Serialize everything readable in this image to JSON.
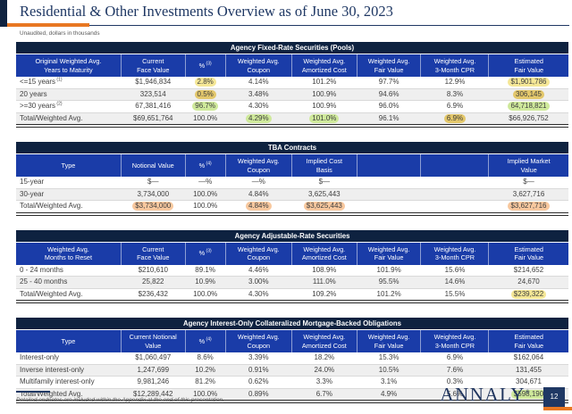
{
  "page": {
    "title": "Residential & Other Investments Overview as of June 30, 2023",
    "subtitle": "Unaudited, dollars in thousands",
    "footnote": "Detailed endnotes are included within the Appendix at the end of this presentation.",
    "logo": "ANNALY",
    "logo_mark": "®",
    "page_number": "12",
    "colors": {
      "navy_band": "#0E2240",
      "header_blue": "#1A3CA8",
      "title_navy": "#1F3864",
      "accent_orange": "#E87722",
      "hl_yellow": "#F5E796",
      "hl_gold": "#E3C76B",
      "hl_green": "#CFE99B",
      "hl_peach": "#F8C89E"
    }
  },
  "layout": {
    "col_widths": [
      "19%",
      "11.6%",
      "7.3%",
      "12%",
      "11.8%",
      "11.6%",
      "12.3%",
      "14.4%"
    ]
  },
  "tables": [
    {
      "title": "Agency Fixed-Rate Securities (Pools)",
      "headers": [
        {
          "lines": [
            "Original Weighted Avg.",
            "Years to Maturity"
          ]
        },
        {
          "lines": [
            "Current",
            "Face Value"
          ]
        },
        {
          "lines": [
            "%"
          ],
          "sup": "(3)"
        },
        {
          "lines": [
            "Weighted Avg.",
            "Coupon"
          ]
        },
        {
          "lines": [
            "Weighted Avg.",
            "Amortized Cost"
          ]
        },
        {
          "lines": [
            "Weighted Avg.",
            "Fair Value"
          ]
        },
        {
          "lines": [
            "Weighted Avg.",
            "3-Month CPR"
          ]
        },
        {
          "lines": [
            "Estimated",
            "Fair Value"
          ]
        }
      ],
      "rows": [
        {
          "label": "<=15 years",
          "label_sup": "(1)",
          "cells": [
            "$1,946,834",
            {
              "v": "2.8%",
              "hl": "yellow"
            },
            "4.14%",
            "101.2%",
            "97.7%",
            "12.9%",
            {
              "v": "$1,901,786",
              "hl": "yellow"
            }
          ]
        },
        {
          "label": "20 years",
          "cells": [
            "323,514",
            {
              "v": "0.5%",
              "hl": "gold"
            },
            "3.48%",
            "100.9%",
            "94.6%",
            "8.3%",
            {
              "v": "306,145",
              "hl": "gold"
            }
          ]
        },
        {
          "label": ">=30 years",
          "label_sup": "(2)",
          "cells": [
            "67,381,416",
            {
              "v": "96.7%",
              "hl": "green"
            },
            "4.30%",
            "100.9%",
            "96.0%",
            "6.9%",
            {
              "v": "64,718,821",
              "hl": "green"
            }
          ]
        },
        {
          "label": "Total/Weighted Avg.",
          "total": true,
          "cells": [
            "$69,651,764",
            "100.0%",
            {
              "v": "4.29%",
              "hl": "green"
            },
            {
              "v": "101.0%",
              "hl": "green"
            },
            "96.1%",
            {
              "v": "6.9%",
              "hl": "gold"
            },
            "$66,926,752"
          ]
        }
      ]
    },
    {
      "title": "TBA Contracts",
      "headers": [
        {
          "lines": [
            "Type"
          ]
        },
        {
          "lines": [
            "Notional Value"
          ]
        },
        {
          "lines": [
            "%"
          ],
          "sup": "(4)"
        },
        {
          "lines": [
            "Weighted Avg.",
            "Coupon"
          ]
        },
        {
          "lines": [
            "Implied Cost",
            "Basis"
          ]
        },
        {
          "lines": []
        },
        {
          "lines": []
        },
        {
          "lines": [
            "Implied Market",
            "Value"
          ]
        }
      ],
      "rows": [
        {
          "label": "15-year",
          "cells": [
            "$—",
            "—%",
            "—%",
            "$—",
            "",
            "",
            "$—"
          ]
        },
        {
          "label": "30-year",
          "cells": [
            "3,734,000",
            "100.0%",
            "4.84%",
            "3,625,443",
            "",
            "",
            "3,627,716"
          ]
        },
        {
          "label": "Total/Weighted Avg.",
          "total": true,
          "cells": [
            {
              "v": "$3,734,000",
              "hl": "peach"
            },
            "100.0%",
            {
              "v": "4.84%",
              "hl": "peach"
            },
            {
              "v": "$3,625,443",
              "hl": "peach"
            },
            "",
            "",
            {
              "v": "$3,627,716",
              "hl": "peach"
            }
          ]
        }
      ]
    },
    {
      "title": "Agency Adjustable-Rate Securities",
      "headers": [
        {
          "lines": [
            "Weighted Avg.",
            "Months to Reset"
          ]
        },
        {
          "lines": [
            "Current",
            "Face Value"
          ]
        },
        {
          "lines": [
            "%"
          ],
          "sup": "(3)"
        },
        {
          "lines": [
            "Weighted Avg.",
            "Coupon"
          ]
        },
        {
          "lines": [
            "Weighted Avg.",
            "Amortized Cost"
          ]
        },
        {
          "lines": [
            "Weighted Avg.",
            "Fair Value"
          ]
        },
        {
          "lines": [
            "Weighted Avg.",
            "3-Month CPR"
          ]
        },
        {
          "lines": [
            "Estimated",
            "Fair Value"
          ]
        }
      ],
      "rows": [
        {
          "label": "0 - 24 months",
          "cells": [
            "$210,610",
            "89.1%",
            "4.46%",
            "108.9%",
            "101.9%",
            "15.6%",
            "$214,652"
          ]
        },
        {
          "label": "25 - 40 months",
          "cells": [
            "25,822",
            "10.9%",
            "3.00%",
            "111.0%",
            "95.5%",
            "14.6%",
            "24,670"
          ]
        },
        {
          "label": "Total/Weighted Avg.",
          "total": true,
          "cells": [
            "$236,432",
            "100.0%",
            "4.30%",
            "109.2%",
            "101.2%",
            "15.5%",
            {
              "v": "$239,322",
              "hl": "yellow"
            }
          ]
        }
      ]
    },
    {
      "title": "Agency Interest-Only Collateralized Mortgage-Backed Obligations",
      "headers": [
        {
          "lines": [
            "Type"
          ]
        },
        {
          "lines": [
            "Current Notional",
            "Value"
          ]
        },
        {
          "lines": [
            "%"
          ],
          "sup": "(4)"
        },
        {
          "lines": [
            "Weighted Avg.",
            "Coupon"
          ]
        },
        {
          "lines": [
            "Weighted Avg.",
            "Amortized Cost"
          ]
        },
        {
          "lines": [
            "Weighted Avg.",
            "Fair Value"
          ]
        },
        {
          "lines": [
            "Weighted Avg.",
            "3-Month CPR"
          ]
        },
        {
          "lines": [
            "Estimated",
            "Fair Value"
          ]
        }
      ],
      "rows": [
        {
          "label": "Interest-only",
          "cells": [
            "$1,060,497",
            "8.6%",
            "3.39%",
            "18.2%",
            "15.3%",
            "6.9%",
            "$162,064"
          ]
        },
        {
          "label": "Inverse interest-only",
          "cells": [
            "1,247,699",
            "10.2%",
            "0.91%",
            "24.0%",
            "10.5%",
            "7.6%",
            "131,455"
          ]
        },
        {
          "label": "Multifamily interest-only",
          "cells": [
            "9,981,246",
            "81.2%",
            "0.62%",
            "3.3%",
            "3.1%",
            "0.3%",
            "304,671"
          ]
        },
        {
          "label": "Total/Weighted Avg.",
          "total": true,
          "cells": [
            "$12,289,442",
            "100.0%",
            "0.89%",
            "6.7%",
            "4.9%",
            "5.6%",
            {
              "v": "$598,190",
              "hl": "green"
            }
          ]
        }
      ]
    }
  ]
}
